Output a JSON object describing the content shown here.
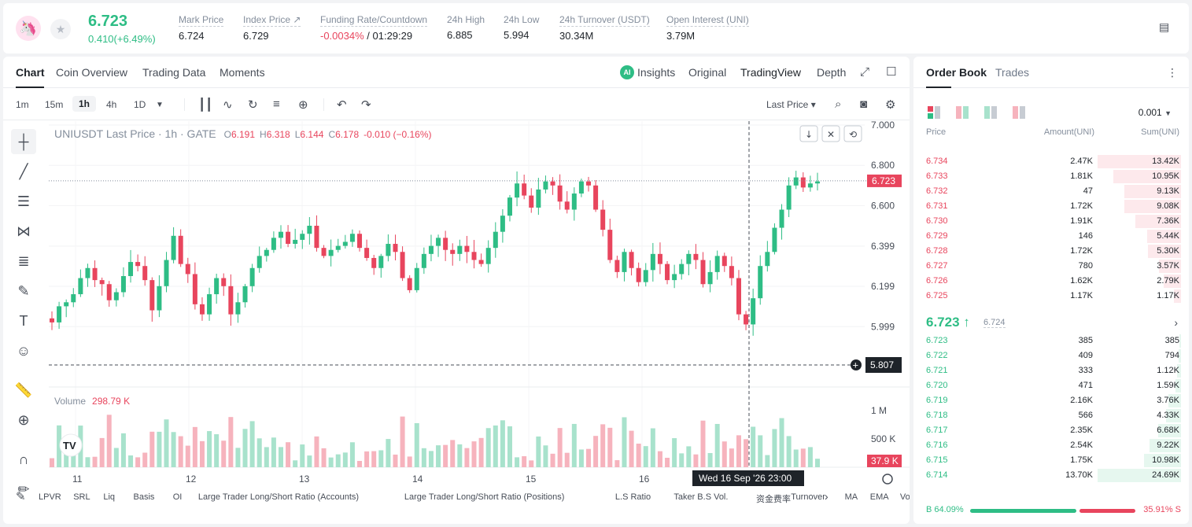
{
  "header": {
    "logo": "uniswap-logo",
    "last_price": "6.723",
    "change": "0.410(+6.49%)",
    "stats": [
      {
        "label": "Mark Price",
        "value": "6.724"
      },
      {
        "label": "Index Price ↗",
        "value": "6.729"
      },
      {
        "label": "Funding Rate/Countdown",
        "value_neg": "-0.0034%",
        "value_rest": " / 01:29:29"
      },
      {
        "label": "24h High",
        "value": "6.885"
      },
      {
        "label": "24h Low",
        "value": "5.994"
      },
      {
        "label": "24h Turnover (USDT)",
        "value": "30.34M"
      },
      {
        "label": "Open Interest (UNI)",
        "value": "3.79M"
      }
    ]
  },
  "chart_tabs": {
    "left": [
      "Chart",
      "Coin Overview",
      "Trading Data",
      "Moments"
    ],
    "ai_badge": "AI",
    "right": [
      "Insights",
      "Original",
      "TradingView",
      "Depth"
    ]
  },
  "toolbar": {
    "timeframes": [
      "1m",
      "15m",
      "1h",
      "4h",
      "1D"
    ],
    "price_type": "Last Price ▾"
  },
  "legend": {
    "symbol": "UNIUSDT Last Price · 1h · GATE",
    "o_label": "O",
    "o": "6.191",
    "h_label": "H",
    "h": "6.318",
    "l_label": "L",
    "l": "6.144",
    "c_label": "C",
    "c": "6.178",
    "change": "-0.010 (−0.16%)",
    "volume_label": "Volume",
    "volume_value": "298.79 K"
  },
  "price_axis": {
    "ticks": [
      "7.000",
      "6.800",
      "6.600",
      "6.399",
      "6.199",
      "5.999"
    ],
    "current_label": "6.723",
    "crosshair_label": "5.807",
    "volume_ticks": [
      "1 M",
      "500 K"
    ],
    "volume_current": "37.9 K"
  },
  "time_axis": {
    "ticks": [
      "11",
      "12",
      "13",
      "14",
      "15",
      "16"
    ],
    "crosshair": "Wed 16 Sep '26   23:00"
  },
  "indicators": [
    "LPVR",
    "SRL",
    "Liq",
    "Basis",
    "OI",
    "Large Trader Long/Short Ratio (Accounts)",
    "Large Trader Long/Short Ratio (Positions)",
    "L.S Ratio",
    "Taker B.S Vol.",
    "资金费率",
    "Turnover",
    "MA",
    "EMA",
    "Volu"
  ],
  "chart_data": {
    "type": "candlestick",
    "x_ticks": [
      "11",
      "12",
      "13",
      "14",
      "15",
      "16"
    ],
    "y_ticks": [
      "7.000",
      "6.800",
      "6.600",
      "6.399",
      "6.199",
      "5.999"
    ],
    "ylim": [
      5.8,
      7.0
    ],
    "volume_ticks": [
      "1 M",
      "500 K"
    ],
    "close_path": [
      6.02,
      6.1,
      6.12,
      6.16,
      6.24,
      6.29,
      6.23,
      6.21,
      6.13,
      6.17,
      6.25,
      6.32,
      6.3,
      6.23,
      6.08,
      6.2,
      6.33,
      6.45,
      6.31,
      6.26,
      6.11,
      6.06,
      6.16,
      6.24,
      6.2,
      6.06,
      6.12,
      6.2,
      6.29,
      6.35,
      6.38,
      6.44,
      6.47,
      6.41,
      6.43,
      6.46,
      6.5,
      6.39,
      6.35,
      6.38,
      6.4,
      6.42,
      6.46,
      6.39,
      6.34,
      6.29,
      6.35,
      6.41,
      6.37,
      6.24,
      6.18,
      6.29,
      6.36,
      6.4,
      6.44,
      6.38,
      6.36,
      6.4,
      6.37,
      6.33,
      6.31,
      6.39,
      6.47,
      6.55,
      6.64,
      6.71,
      6.65,
      6.59,
      6.68,
      6.72,
      6.7,
      6.62,
      6.58,
      6.66,
      6.72,
      6.7,
      6.58,
      6.48,
      6.33,
      6.27,
      6.37,
      6.29,
      6.22,
      6.28,
      6.36,
      6.31,
      6.23,
      6.26,
      6.31,
      6.36,
      6.33,
      6.21,
      6.27,
      6.35,
      6.3,
      6.24,
      6.06,
      6.01,
      6.14,
      6.3,
      6.37,
      6.49,
      6.58,
      6.7,
      6.74,
      6.69,
      6.71,
      6.72
    ]
  },
  "order_book": {
    "tabs": [
      "Order Book",
      "Trades"
    ],
    "precision": "0.001",
    "columns": [
      "Price",
      "Amount(UNI)",
      "Sum(UNI)"
    ],
    "asks": [
      {
        "price": "6.734",
        "amount": "2.47K",
        "sum": "13.42K",
        "depth": 1.0
      },
      {
        "price": "6.733",
        "amount": "1.81K",
        "sum": "10.95K",
        "depth": 0.816
      },
      {
        "price": "6.732",
        "amount": "47",
        "sum": "9.13K",
        "depth": 0.68
      },
      {
        "price": "6.731",
        "amount": "1.72K",
        "sum": "9.08K",
        "depth": 0.677
      },
      {
        "price": "6.730",
        "amount": "1.91K",
        "sum": "7.36K",
        "depth": 0.548
      },
      {
        "price": "6.729",
        "amount": "146",
        "sum": "5.44K",
        "depth": 0.405
      },
      {
        "price": "6.728",
        "amount": "1.72K",
        "sum": "5.30K",
        "depth": 0.395
      },
      {
        "price": "6.727",
        "amount": "780",
        "sum": "3.57K",
        "depth": 0.266
      },
      {
        "price": "6.726",
        "amount": "1.62K",
        "sum": "2.79K",
        "depth": 0.208
      },
      {
        "price": "6.725",
        "amount": "1.17K",
        "sum": "1.17K",
        "depth": 0.087
      }
    ],
    "mid_price": "6.723 ↑",
    "mid_index": "6.724",
    "bids": [
      {
        "price": "6.723",
        "amount": "385",
        "sum": "385",
        "depth": 0.016
      },
      {
        "price": "6.722",
        "amount": "409",
        "sum": "794",
        "depth": 0.032
      },
      {
        "price": "6.721",
        "amount": "333",
        "sum": "1.12K",
        "depth": 0.045
      },
      {
        "price": "6.720",
        "amount": "471",
        "sum": "1.59K",
        "depth": 0.064
      },
      {
        "price": "6.719",
        "amount": "2.16K",
        "sum": "3.76K",
        "depth": 0.152
      },
      {
        "price": "6.718",
        "amount": "566",
        "sum": "4.33K",
        "depth": 0.175
      },
      {
        "price": "6.717",
        "amount": "2.35K",
        "sum": "6.68K",
        "depth": 0.271
      },
      {
        "price": "6.716",
        "amount": "2.54K",
        "sum": "9.22K",
        "depth": 0.373
      },
      {
        "price": "6.715",
        "amount": "1.75K",
        "sum": "10.98K",
        "depth": 0.445
      },
      {
        "price": "6.714",
        "amount": "13.70K",
        "sum": "24.69K",
        "depth": 1.0
      }
    ],
    "buy_ratio": "B 64.09%",
    "sell_ratio": "35.91% S",
    "buy_fraction": 0.6409
  },
  "colors": {
    "up": "#2ebd85",
    "down": "#e8455d"
  }
}
